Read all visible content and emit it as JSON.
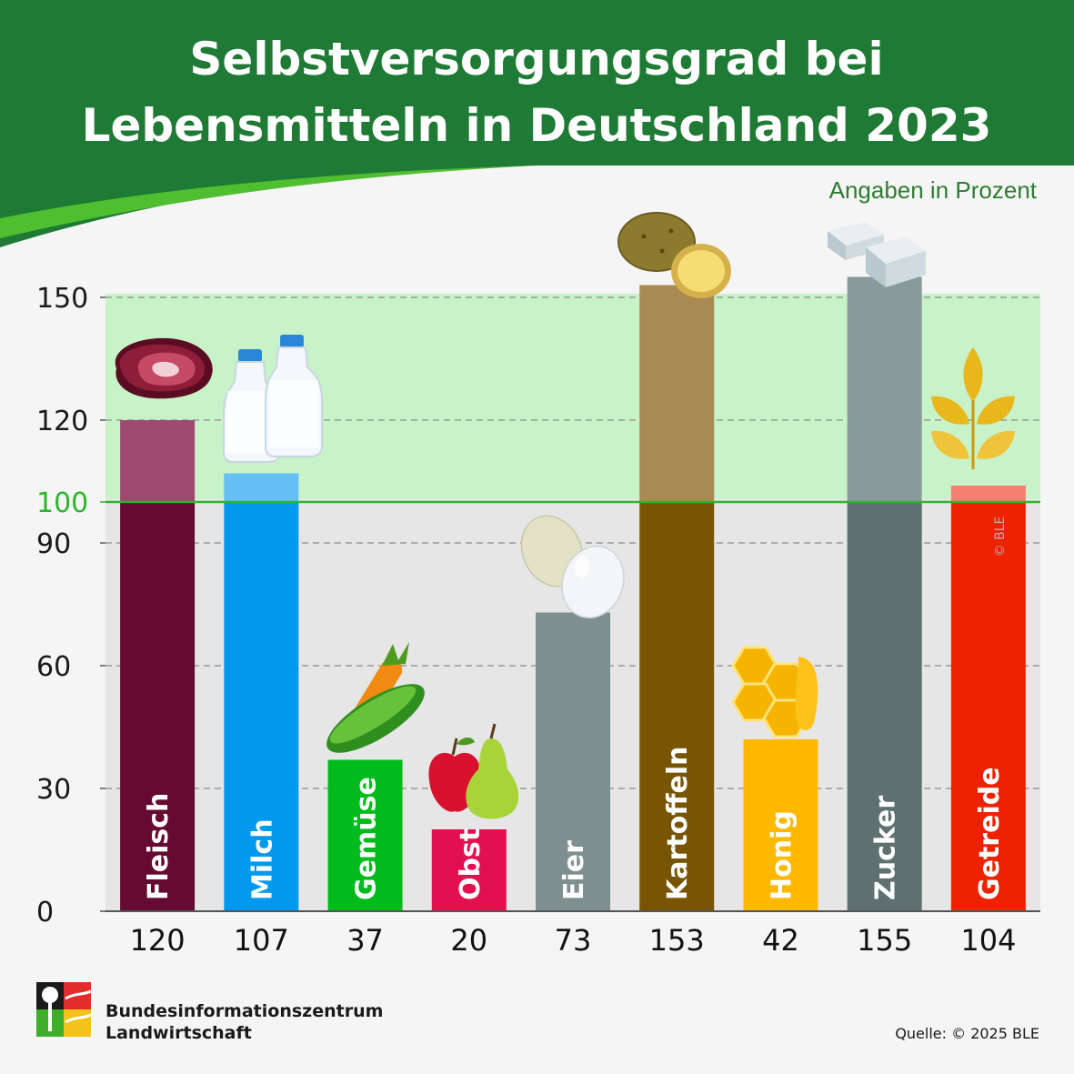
{
  "header": {
    "title_line1": "Selbstversorgungsgrad bei",
    "title_line2": "Lebensmitteln in Deutschland 2023",
    "unit_note": "Angaben in Prozent"
  },
  "colors": {
    "header_green": "#1e7a34",
    "band_above_100": "#c8f2c8",
    "band_below_100": "#e6e6e6",
    "reference_line": "#2db52d"
  },
  "chart_data": {
    "type": "bar",
    "title": "Selbstversorgungsgrad bei Lebensmitteln in Deutschland 2023",
    "ylabel": "",
    "unit": "Angaben in Prozent",
    "ylim": [
      0,
      150
    ],
    "yticks": [
      0,
      30,
      60,
      90,
      100,
      120,
      150
    ],
    "reference_line": 100,
    "categories": [
      "Fleisch",
      "Milch",
      "Gemüse",
      "Obst",
      "Eier",
      "Kartoffeln",
      "Honig",
      "Zucker",
      "Getreide"
    ],
    "values": [
      120,
      107,
      37,
      20,
      73,
      153,
      42,
      155,
      104
    ],
    "value_labels": [
      "120",
      "107",
      "37",
      "20",
      "73",
      "153",
      "42",
      "155",
      "104"
    ],
    "bar_colors": [
      "#650a30",
      "#0099ee",
      "#00bb1c",
      "#e2104e",
      "#7f8f8f",
      "#785503",
      "#ffb800",
      "#5e7070",
      "#ee2200"
    ],
    "bar_colors_above_100": [
      "#9d4970",
      "#66bff5",
      "#00bb1c",
      "#e2104e",
      "#7f8f8f",
      "#a98a52",
      "#ffb800",
      "#889a9a",
      "#f87e70"
    ],
    "icons": [
      "meat-icon",
      "milk-bottles-icon",
      "carrot-cucumber-icon",
      "apple-pear-icon",
      "eggs-icon",
      "potatoes-icon",
      "honeycomb-icon",
      "sugar-cubes-icon",
      "wheat-ear-icon"
    ]
  },
  "footer": {
    "org_line1": "Bundesinformationszentrum",
    "org_line2": "Landwirtschaft",
    "source": "Quelle: © 2025 BLE",
    "copyright_mark": "© BLE"
  }
}
